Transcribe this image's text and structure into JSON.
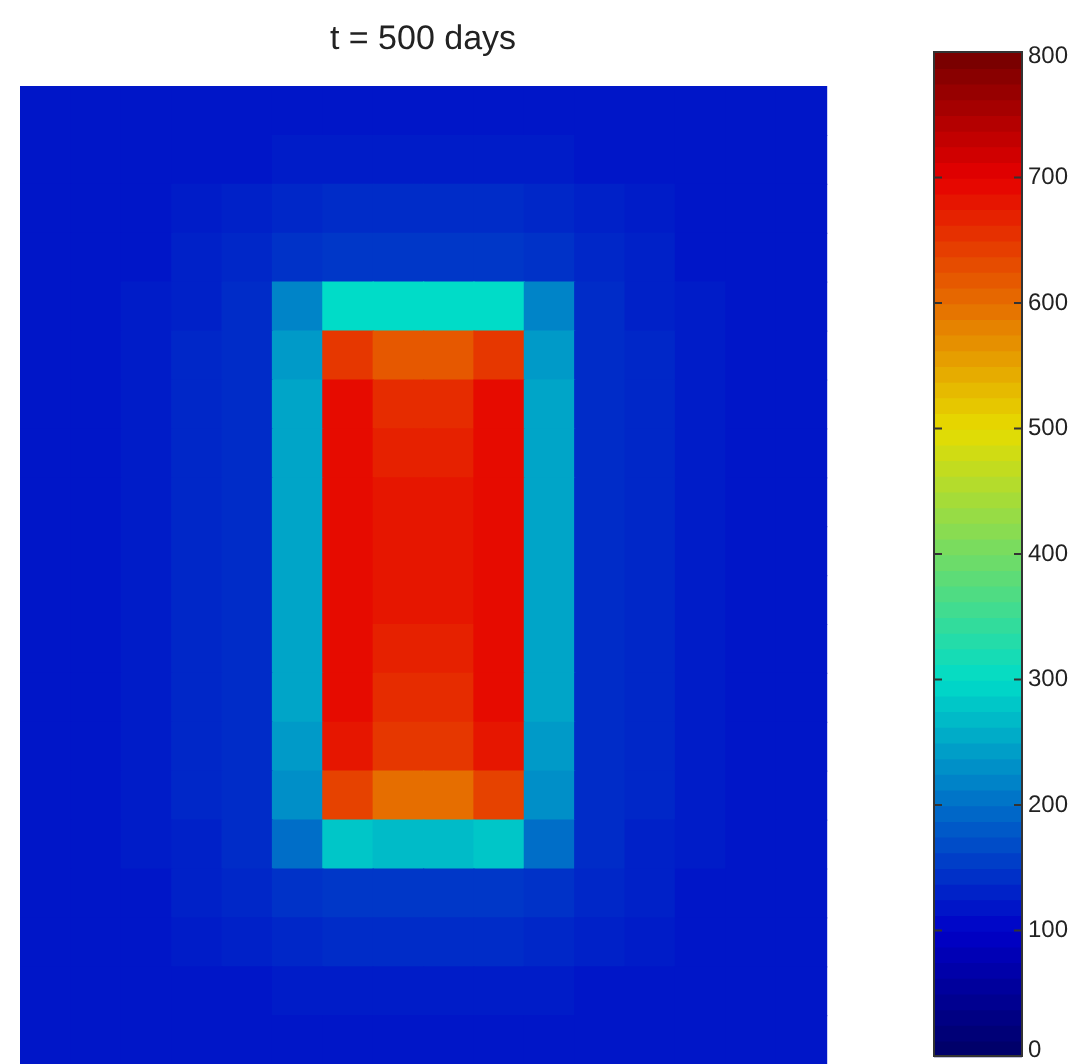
{
  "chart_data": {
    "type": "heatmap",
    "title": "t = 500 days",
    "categories": [
      null,
      null,
      null,
      null,
      null,
      null,
      null,
      null,
      null,
      null,
      null,
      null,
      null,
      null,
      null,
      null
    ],
    "y_categories": [
      null,
      null,
      null,
      null,
      null,
      null,
      null,
      null,
      null,
      null,
      null,
      null,
      null,
      null,
      null,
      null,
      null,
      null,
      null,
      null
    ],
    "cells": [
      [
        120,
        120,
        120,
        120,
        120,
        120,
        120,
        120,
        120,
        120,
        120,
        120,
        120,
        120,
        120,
        120
      ],
      [
        120,
        120,
        120,
        120,
        120,
        125,
        125,
        125,
        125,
        125,
        125,
        120,
        120,
        120,
        120,
        120
      ],
      [
        120,
        120,
        120,
        125,
        130,
        135,
        140,
        140,
        140,
        140,
        135,
        130,
        125,
        120,
        120,
        120
      ],
      [
        120,
        120,
        120,
        130,
        135,
        145,
        150,
        150,
        150,
        150,
        145,
        135,
        130,
        120,
        120,
        120
      ],
      [
        120,
        120,
        125,
        130,
        140,
        220,
        300,
        300,
        300,
        300,
        220,
        140,
        130,
        125,
        120,
        120
      ],
      [
        120,
        120,
        125,
        135,
        140,
        240,
        650,
        620,
        620,
        650,
        240,
        140,
        135,
        125,
        120,
        120
      ],
      [
        120,
        120,
        125,
        135,
        140,
        250,
        690,
        660,
        660,
        690,
        250,
        140,
        135,
        125,
        120,
        120
      ],
      [
        120,
        120,
        125,
        135,
        140,
        250,
        690,
        670,
        670,
        690,
        250,
        140,
        135,
        125,
        120,
        120
      ],
      [
        120,
        120,
        125,
        135,
        140,
        250,
        690,
        680,
        680,
        690,
        250,
        140,
        135,
        125,
        120,
        120
      ],
      [
        120,
        120,
        125,
        135,
        140,
        250,
        690,
        680,
        680,
        690,
        250,
        140,
        135,
        125,
        120,
        120
      ],
      [
        120,
        120,
        125,
        135,
        140,
        250,
        690,
        680,
        680,
        690,
        250,
        140,
        135,
        125,
        120,
        120
      ],
      [
        120,
        120,
        125,
        135,
        140,
        250,
        690,
        670,
        670,
        690,
        250,
        140,
        135,
        125,
        120,
        120
      ],
      [
        120,
        120,
        125,
        135,
        140,
        250,
        690,
        660,
        660,
        690,
        250,
        140,
        135,
        125,
        120,
        120
      ],
      [
        120,
        120,
        125,
        135,
        140,
        240,
        680,
        650,
        650,
        680,
        240,
        140,
        135,
        125,
        120,
        120
      ],
      [
        120,
        120,
        125,
        135,
        140,
        230,
        640,
        600,
        600,
        640,
        230,
        140,
        135,
        125,
        120,
        120
      ],
      [
        120,
        120,
        125,
        130,
        140,
        200,
        280,
        270,
        270,
        280,
        200,
        140,
        130,
        125,
        120,
        120
      ],
      [
        120,
        120,
        120,
        130,
        135,
        145,
        150,
        150,
        150,
        150,
        145,
        135,
        130,
        120,
        120,
        120
      ],
      [
        120,
        120,
        120,
        125,
        130,
        135,
        140,
        140,
        140,
        140,
        135,
        130,
        125,
        120,
        120,
        120
      ],
      [
        120,
        120,
        120,
        120,
        120,
        125,
        125,
        125,
        125,
        125,
        125,
        120,
        120,
        120,
        120,
        120
      ],
      [
        120,
        120,
        120,
        120,
        120,
        120,
        120,
        120,
        120,
        120,
        120,
        120,
        120,
        120,
        120,
        120
      ]
    ],
    "clim": [
      0,
      800
    ],
    "cticks": [
      0,
      100,
      200,
      300,
      400,
      500,
      600,
      700,
      800
    ],
    "tick_labels": false
  }
}
